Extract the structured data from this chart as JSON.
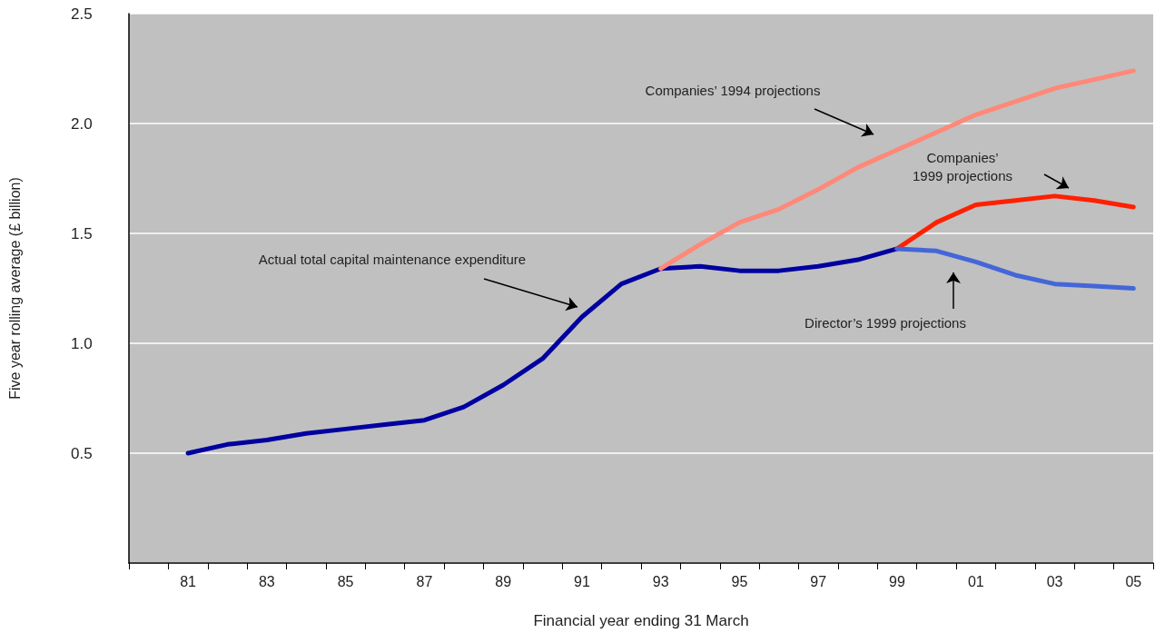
{
  "chart_data": {
    "type": "line",
    "xlabel": "Financial year ending 31 March",
    "ylabel": "Five year rolling average (£ billion)",
    "categories": [
      null,
      "81",
      null,
      "83",
      null,
      "85",
      null,
      "87",
      null,
      "89",
      null,
      "91",
      null,
      "93",
      null,
      "95",
      null,
      "97",
      null,
      "99",
      null,
      "01",
      null,
      "03",
      null,
      "05"
    ],
    "series": [
      {
        "color": "#0000a0",
        "values": [
          null,
          0.5,
          0.54,
          0.56,
          0.59,
          0.61,
          0.63,
          0.65,
          0.71,
          0.81,
          0.93,
          1.12,
          1.27,
          1.34,
          1.35,
          1.33,
          1.33,
          1.35,
          1.38,
          1.43,
          null,
          null,
          null,
          null,
          null,
          null
        ]
      },
      {
        "color": "#ff8878",
        "values": [
          null,
          null,
          null,
          null,
          null,
          null,
          null,
          null,
          null,
          null,
          null,
          null,
          null,
          1.34,
          1.45,
          1.55,
          1.61,
          1.7,
          1.8,
          1.88,
          1.96,
          2.04,
          2.1,
          2.16,
          2.2,
          2.24
        ]
      },
      {
        "color": "#ff2000",
        "values": [
          null,
          null,
          null,
          null,
          null,
          null,
          null,
          null,
          null,
          null,
          null,
          null,
          null,
          null,
          null,
          null,
          null,
          null,
          null,
          1.43,
          1.55,
          1.63,
          1.65,
          1.67,
          1.65,
          1.62
        ]
      },
      {
        "color": "#4466d8",
        "values": [
          null,
          null,
          null,
          null,
          null,
          null,
          null,
          null,
          null,
          null,
          null,
          null,
          null,
          null,
          null,
          null,
          null,
          null,
          null,
          1.43,
          1.42,
          1.37,
          1.31,
          1.27,
          1.26,
          1.25
        ]
      }
    ],
    "ylim": [
      0,
      2.5
    ],
    "yticks": [
      {
        "value": 0,
        "label": null
      },
      0.5,
      {
        "value": 1,
        "label": "1.0"
      },
      1.5,
      {
        "value": 2,
        "label": "2.0"
      },
      2.5
    ],
    "grid": "y",
    "marker": "none",
    "line_style": "solid",
    "annotations": [
      "Actual total capital maintenance expenditure",
      "Companies’ 1994 projections",
      "Companies’\n1999 projections",
      "Director’s 1999 projections"
    ]
  }
}
